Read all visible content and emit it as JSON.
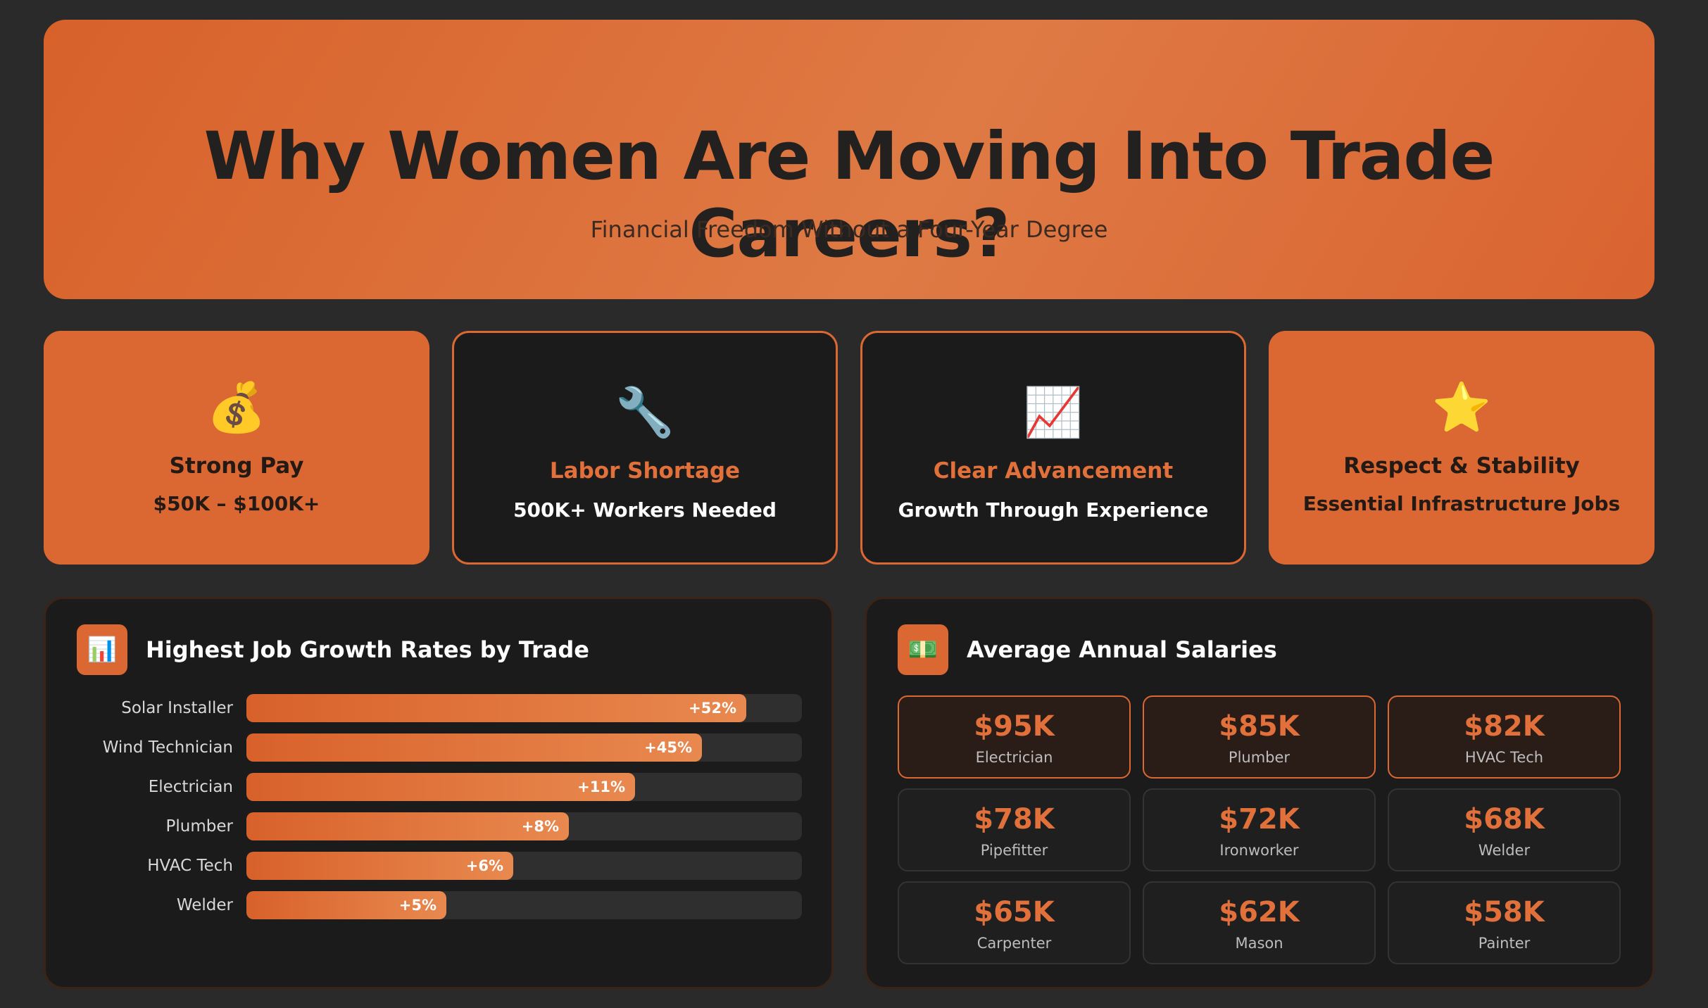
{
  "hero": {
    "title": "Why Women Are Moving Into Trade Careers?",
    "subtitle": "Financial Freedom Without a Four-Year Degree"
  },
  "cards": [
    {
      "icon": "💰",
      "icon_name": "money-bag-icon",
      "title": "Strong Pay",
      "subtitle": "$50K – $100K+",
      "style": "orange"
    },
    {
      "icon": "🔧",
      "icon_name": "wrench-icon",
      "title": "Labor Shortage",
      "subtitle": "500K+ Workers Needed",
      "style": "dark"
    },
    {
      "icon": "📈",
      "icon_name": "chart-increasing-icon",
      "title": "Clear Advancement",
      "subtitle": "Growth Through Experience",
      "style": "dark"
    },
    {
      "icon": "⭐",
      "icon_name": "star-icon",
      "title": "Respect & Stability",
      "subtitle": "Essential Infrastructure Jobs",
      "style": "orange"
    }
  ],
  "growth_panel": {
    "icon": "📊",
    "title": "Highest Job Growth Rates by Trade"
  },
  "salary_panel": {
    "icon": "💵",
    "title": "Average Annual Salaries",
    "tiles": [
      {
        "value": "$95K",
        "name": "Electrician",
        "highlight": true
      },
      {
        "value": "$85K",
        "name": "Plumber",
        "highlight": true
      },
      {
        "value": "$82K",
        "name": "HVAC Tech",
        "highlight": true
      },
      {
        "value": "$78K",
        "name": "Pipefitter",
        "highlight": false
      },
      {
        "value": "$72K",
        "name": "Ironworker",
        "highlight": false
      },
      {
        "value": "$68K",
        "name": "Welder",
        "highlight": false
      },
      {
        "value": "$65K",
        "name": "Carpenter",
        "highlight": false
      },
      {
        "value": "$62K",
        "name": "Mason",
        "highlight": false
      },
      {
        "value": "$58K",
        "name": "Painter",
        "highlight": false
      }
    ]
  },
  "chart_data": {
    "type": "bar",
    "orientation": "horizontal",
    "title": "Highest Job Growth Rates by Trade",
    "categories": [
      "Solar Installer",
      "Wind Technician",
      "Electrician",
      "Plumber",
      "HVAC Tech",
      "Welder"
    ],
    "values": [
      52,
      45,
      11,
      8,
      6,
      5
    ],
    "value_labels": [
      "+52%",
      "+45%",
      "+11%",
      "+8%",
      "+6%",
      "+5%"
    ],
    "fill_fractions": [
      0.9,
      0.82,
      0.7,
      0.58,
      0.48,
      0.36
    ]
  },
  "colors": {
    "accent": "#db6732",
    "background": "#2a2a2a",
    "panel": "#1b1b1b"
  }
}
